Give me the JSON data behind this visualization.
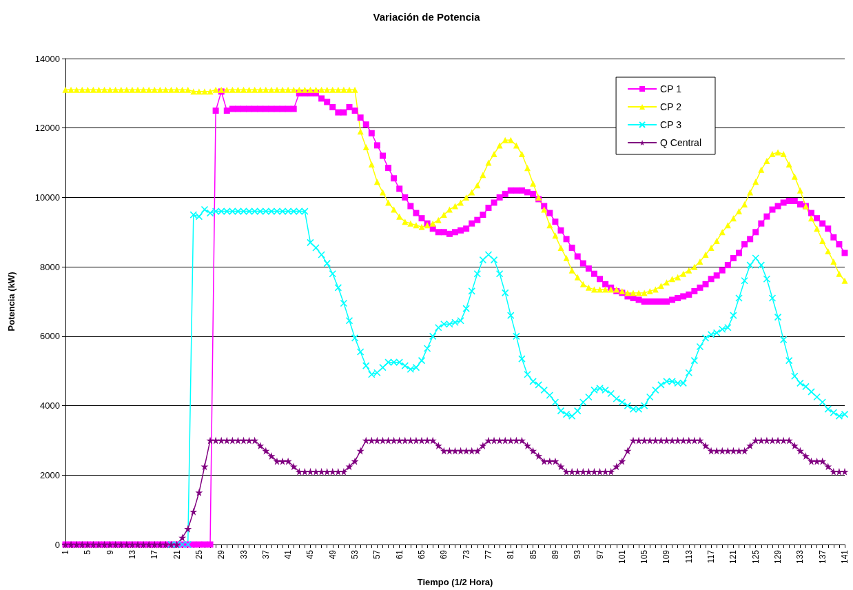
{
  "chart_data": {
    "type": "line",
    "title": "Variación de Potencia",
    "xlabel": "Tiempo (1/2 Hora)",
    "ylabel": "Potencia (kW)",
    "categories": [
      "1",
      null,
      null,
      null,
      "5",
      null,
      null,
      null,
      "9",
      null,
      null,
      null,
      "13",
      null,
      null,
      null,
      "17",
      null,
      null,
      null,
      "21",
      null,
      null,
      null,
      "25",
      null,
      null,
      null,
      "29",
      null,
      null,
      null,
      "33",
      null,
      null,
      null,
      "37",
      null,
      null,
      null,
      "41",
      null,
      null,
      null,
      "45",
      null,
      null,
      null,
      "49",
      null,
      null,
      null,
      "53",
      null,
      null,
      null,
      "57",
      null,
      null,
      null,
      "61",
      null,
      null,
      null,
      "65",
      null,
      null,
      null,
      "69",
      null,
      null,
      null,
      "73",
      null,
      null,
      null,
      "77",
      null,
      null,
      null,
      "81",
      null,
      null,
      null,
      "85",
      null,
      null,
      null,
      "89",
      null,
      null,
      null,
      "93",
      null,
      null,
      null,
      "97",
      null,
      null,
      null,
      "101",
      null,
      null,
      null,
      "105",
      null,
      null,
      null,
      "109",
      null,
      null,
      null,
      "113",
      null,
      null,
      null,
      "117",
      null,
      null,
      null,
      "121",
      null,
      null,
      null,
      "125",
      null,
      null,
      null,
      "129",
      null,
      null,
      null,
      "133",
      null,
      null,
      null,
      "137",
      null,
      null,
      null,
      "141"
    ],
    "series": [
      {
        "name": "CP 1",
        "color": "#ff00ff",
        "marker": "square",
        "values": [
          0,
          0,
          0,
          0,
          0,
          0,
          0,
          0,
          0,
          0,
          0,
          0,
          0,
          0,
          0,
          0,
          0,
          0,
          0,
          0,
          0,
          0,
          0,
          0,
          0,
          0,
          0,
          12500,
          13050,
          12500,
          12550,
          12550,
          12550,
          12550,
          12550,
          12550,
          12550,
          12550,
          12550,
          12550,
          12550,
          12550,
          13000,
          13000,
          13000,
          13000,
          12850,
          12750,
          12600,
          12450,
          12450,
          12600,
          12500,
          12300,
          12100,
          11850,
          11500,
          11200,
          10850,
          10550,
          10250,
          10000,
          9750,
          9550,
          9400,
          9250,
          9100,
          9000,
          9000,
          8950,
          9000,
          9050,
          9100,
          9250,
          9350,
          9500,
          9700,
          9850,
          10000,
          10100,
          10200,
          10200,
          10200,
          10150,
          10100,
          9950,
          9750,
          9550,
          9300,
          9050,
          8800,
          8550,
          8300,
          8100,
          7950,
          7800,
          7650,
          7500,
          7400,
          7300,
          7250,
          7150,
          7100,
          7050,
          7000,
          7000,
          7000,
          7000,
          7000,
          7050,
          7100,
          7150,
          7200,
          7300,
          7400,
          7500,
          7650,
          7750,
          7900,
          8050,
          8250,
          8400,
          8650,
          8800,
          9000,
          9250,
          9450,
          9650,
          9750,
          9850,
          9900,
          9900,
          9800,
          9750,
          9550,
          9400,
          9250,
          9100,
          8850,
          8650,
          8400
        ]
      },
      {
        "name": "CP 2",
        "color": "#ffff00",
        "marker": "triangle",
        "values": [
          13100,
          13100,
          13100,
          13100,
          13100,
          13100,
          13100,
          13100,
          13100,
          13100,
          13100,
          13100,
          13100,
          13100,
          13100,
          13100,
          13100,
          13100,
          13100,
          13100,
          13100,
          13100,
          13100,
          13050,
          13050,
          13050,
          13050,
          13100,
          13100,
          13100,
          13100,
          13100,
          13100,
          13100,
          13100,
          13100,
          13100,
          13100,
          13100,
          13100,
          13100,
          13100,
          13100,
          13100,
          13100,
          13100,
          13100,
          13100,
          13100,
          13100,
          13100,
          13100,
          13100,
          11900,
          11450,
          10950,
          10450,
          10150,
          9850,
          9650,
          9450,
          9300,
          9250,
          9200,
          9150,
          9200,
          9250,
          9350,
          9500,
          9650,
          9750,
          9850,
          10000,
          10150,
          10350,
          10650,
          11000,
          11250,
          11500,
          11650,
          11650,
          11500,
          11250,
          10850,
          10400,
          10000,
          9650,
          9200,
          8900,
          8550,
          8250,
          7900,
          7700,
          7500,
          7400,
          7350,
          7350,
          7350,
          7350,
          7350,
          7300,
          7250,
          7250,
          7250,
          7250,
          7300,
          7350,
          7450,
          7550,
          7650,
          7700,
          7800,
          7900,
          8000,
          8150,
          8350,
          8550,
          8750,
          9000,
          9200,
          9400,
          9600,
          9800,
          10150,
          10450,
          10800,
          11050,
          11250,
          11300,
          11250,
          10950,
          10600,
          10200,
          9750,
          9400,
          9100,
          8750,
          8450,
          8150,
          7800,
          7600
        ]
      },
      {
        "name": "CP 3",
        "color": "#00ffff",
        "marker": "cross",
        "values": [
          null,
          null,
          null,
          null,
          null,
          null,
          null,
          null,
          null,
          null,
          null,
          null,
          null,
          null,
          null,
          null,
          null,
          null,
          null,
          0,
          0,
          0,
          0,
          9500,
          9450,
          9650,
          9550,
          9600,
          9600,
          9600,
          9600,
          9600,
          9600,
          9600,
          9600,
          9600,
          9600,
          9600,
          9600,
          9600,
          9600,
          9600,
          9600,
          9600,
          8700,
          8550,
          8350,
          8100,
          7800,
          7400,
          6950,
          6450,
          5950,
          5550,
          5150,
          4900,
          4950,
          5100,
          5250,
          5250,
          5250,
          5150,
          5050,
          5100,
          5300,
          5650,
          6000,
          6250,
          6350,
          6350,
          6400,
          6450,
          6800,
          7300,
          7800,
          8200,
          8350,
          8200,
          7800,
          7250,
          6600,
          6000,
          5350,
          4900,
          4700,
          4600,
          4450,
          4300,
          4100,
          3850,
          3750,
          3700,
          3850,
          4100,
          4250,
          4450,
          4500,
          4450,
          4350,
          4200,
          4100,
          4000,
          3900,
          3900,
          4000,
          4250,
          4450,
          4600,
          4700,
          4700,
          4650,
          4650,
          4950,
          5300,
          5700,
          5950,
          6050,
          6100,
          6200,
          6250,
          6600,
          7100,
          7600,
          8050,
          8250,
          8050,
          7650,
          7100,
          6550,
          5900,
          5300,
          4850,
          4650,
          4550,
          4400,
          4250,
          4100,
          3900,
          3800,
          3700,
          3750
        ]
      },
      {
        "name": "Q Central",
        "color": "#800080",
        "marker": "star",
        "values": [
          0,
          0,
          0,
          0,
          0,
          0,
          0,
          0,
          0,
          0,
          0,
          0,
          0,
          0,
          0,
          0,
          0,
          0,
          0,
          0,
          0,
          200,
          450,
          950,
          1500,
          2250,
          3000,
          3000,
          3000,
          3000,
          3000,
          3000,
          3000,
          3000,
          3000,
          2850,
          2700,
          2550,
          2400,
          2400,
          2400,
          2250,
          2100,
          2100,
          2100,
          2100,
          2100,
          2100,
          2100,
          2100,
          2100,
          2250,
          2400,
          2700,
          3000,
          3000,
          3000,
          3000,
          3000,
          3000,
          3000,
          3000,
          3000,
          3000,
          3000,
          3000,
          3000,
          2850,
          2700,
          2700,
          2700,
          2700,
          2700,
          2700,
          2700,
          2850,
          3000,
          3000,
          3000,
          3000,
          3000,
          3000,
          3000,
          2850,
          2700,
          2550,
          2400,
          2400,
          2400,
          2250,
          2100,
          2100,
          2100,
          2100,
          2100,
          2100,
          2100,
          2100,
          2100,
          2250,
          2400,
          2700,
          3000,
          3000,
          3000,
          3000,
          3000,
          3000,
          3000,
          3000,
          3000,
          3000,
          3000,
          3000,
          3000,
          2850,
          2700,
          2700,
          2700,
          2700,
          2700,
          2700,
          2700,
          2850,
          3000,
          3000,
          3000,
          3000,
          3000,
          3000,
          3000,
          2850,
          2700,
          2550,
          2400,
          2400,
          2400,
          2250,
          2100,
          2100,
          2100
        ]
      }
    ],
    "ylim": [
      0,
      14000
    ],
    "yticks": [
      0,
      2000,
      4000,
      6000,
      8000,
      10000,
      12000,
      14000
    ],
    "grid": "y",
    "legend": "top right",
    "line_style": "solid"
  }
}
